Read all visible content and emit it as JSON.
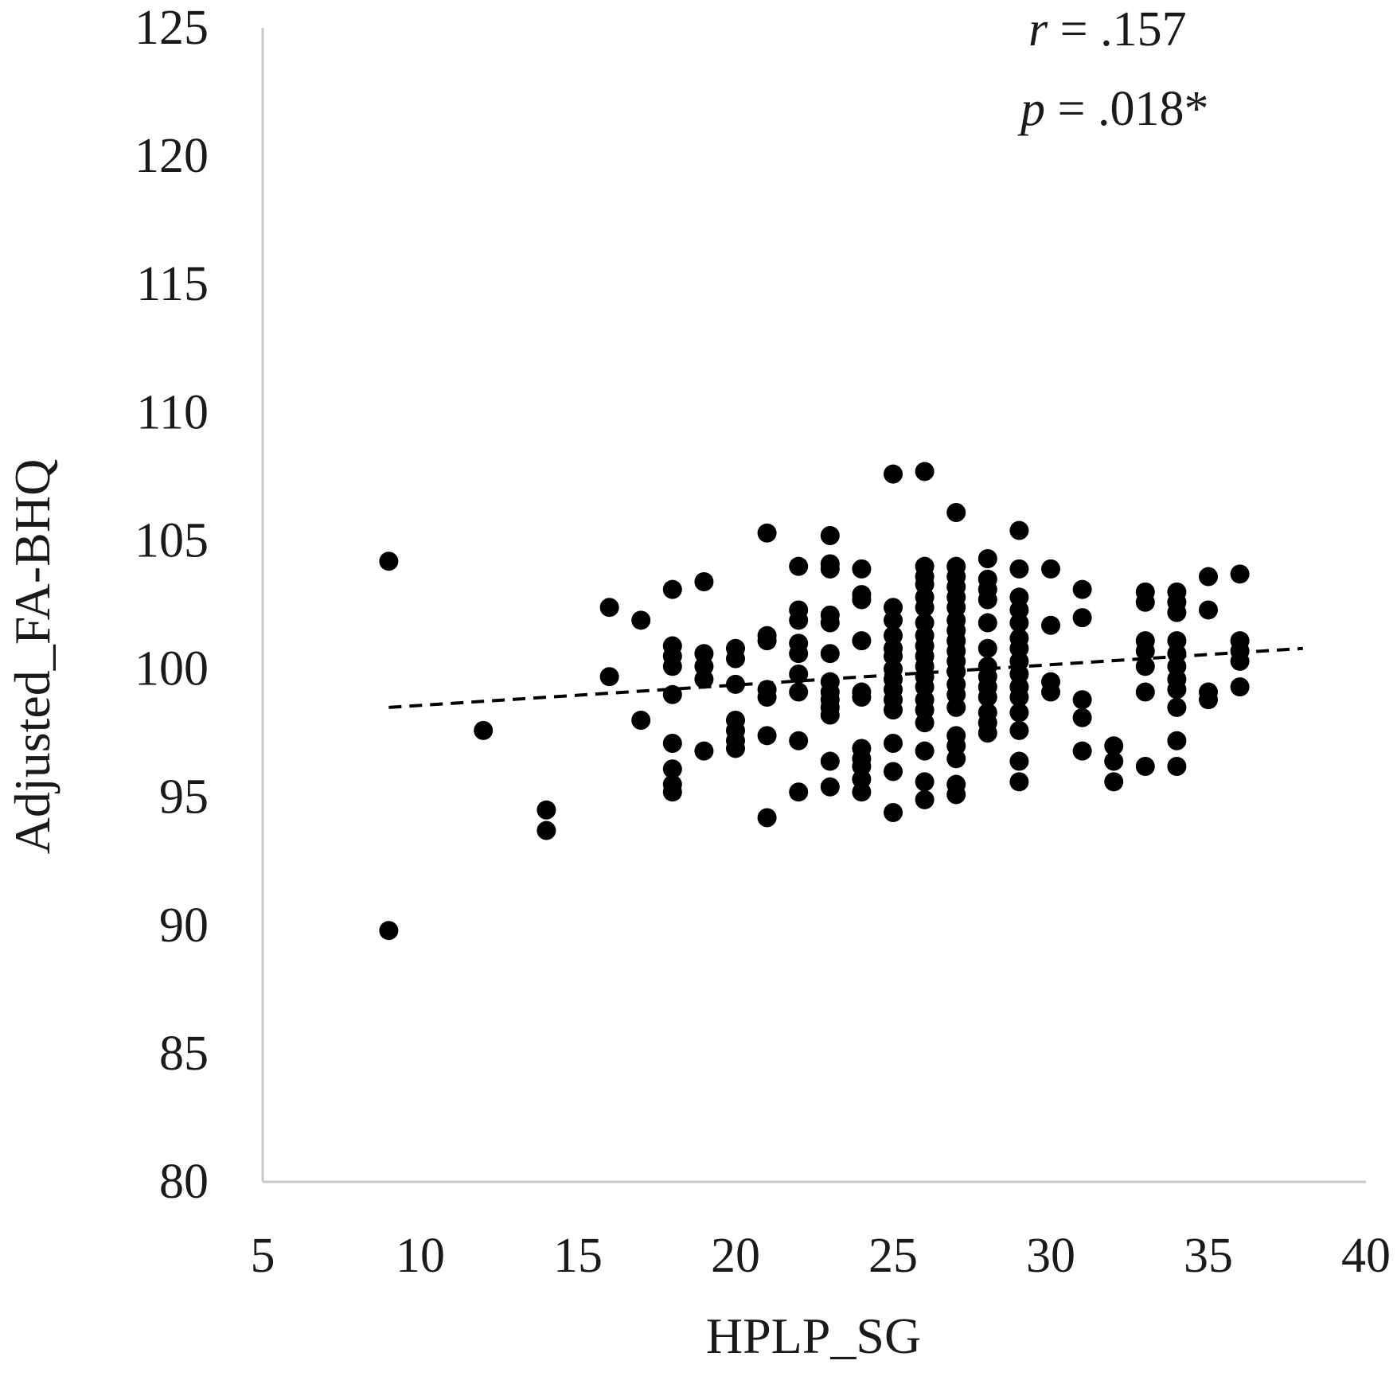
{
  "chart_data": {
    "type": "scatter",
    "xlabel": "HPLP_SG",
    "ylabel": "Adjusted_FA-BHQ",
    "xlim": [
      5,
      40
    ],
    "ylim": [
      80,
      125
    ],
    "x_ticks": [
      "5",
      "10",
      "15",
      "20",
      "25",
      "30",
      "35",
      "40"
    ],
    "y_ticks": [
      "80",
      "85",
      "90",
      "95",
      "100",
      "105",
      "110",
      "115",
      "120",
      "125"
    ],
    "grid": false,
    "legend": "none",
    "annotations": {
      "r_symbol": "r",
      "r_value": " = .157",
      "p_symbol": "p",
      "p_value": " = .018*"
    },
    "colors": {
      "points": "#000000",
      "axis": "#c8c8c8",
      "trendline": "#000000"
    },
    "trendline": {
      "style": "dashed",
      "x": [
        9,
        38
      ],
      "y": [
        98.5,
        100.8
      ]
    },
    "points": [
      [
        9,
        104.2
      ],
      [
        9,
        89.8
      ],
      [
        12,
        97.6
      ],
      [
        14,
        94.5
      ],
      [
        14,
        93.7
      ],
      [
        16,
        102.4
      ],
      [
        16,
        99.7
      ],
      [
        17,
        101.9
      ],
      [
        17,
        98.0
      ],
      [
        18,
        103.1
      ],
      [
        18,
        100.9
      ],
      [
        18,
        100.5
      ],
      [
        18,
        100.1
      ],
      [
        18,
        99.0
      ],
      [
        18,
        97.1
      ],
      [
        18,
        96.1
      ],
      [
        18,
        95.5
      ],
      [
        18,
        95.2
      ],
      [
        19,
        103.4
      ],
      [
        19,
        100.6
      ],
      [
        19,
        100.1
      ],
      [
        19,
        99.6
      ],
      [
        19,
        96.8
      ],
      [
        20,
        100.8
      ],
      [
        20,
        100.4
      ],
      [
        20,
        99.4
      ],
      [
        20,
        98.0
      ],
      [
        20,
        97.6
      ],
      [
        20,
        97.2
      ],
      [
        20,
        96.9
      ],
      [
        21,
        105.3
      ],
      [
        21,
        101.3
      ],
      [
        21,
        101.1
      ],
      [
        21,
        99.2
      ],
      [
        21,
        98.9
      ],
      [
        21,
        97.4
      ],
      [
        21,
        94.2
      ],
      [
        22,
        104.0
      ],
      [
        22,
        102.3
      ],
      [
        22,
        101.9
      ],
      [
        22,
        101.0
      ],
      [
        22,
        100.6
      ],
      [
        22,
        99.8
      ],
      [
        22,
        99.1
      ],
      [
        22,
        97.2
      ],
      [
        22,
        95.2
      ],
      [
        23,
        105.2
      ],
      [
        23,
        104.1
      ],
      [
        23,
        103.9
      ],
      [
        23,
        102.1
      ],
      [
        23,
        101.8
      ],
      [
        23,
        100.6
      ],
      [
        23,
        99.5
      ],
      [
        23,
        99.1
      ],
      [
        23,
        98.8
      ],
      [
        23,
        98.5
      ],
      [
        23,
        98.2
      ],
      [
        23,
        96.4
      ],
      [
        23,
        95.4
      ],
      [
        24,
        103.9
      ],
      [
        24,
        102.9
      ],
      [
        24,
        102.7
      ],
      [
        24,
        101.1
      ],
      [
        24,
        99.1
      ],
      [
        24,
        98.9
      ],
      [
        24,
        96.9
      ],
      [
        24,
        96.5
      ],
      [
        24,
        96.2
      ],
      [
        24,
        95.7
      ],
      [
        24,
        95.2
      ],
      [
        25,
        107.6
      ],
      [
        25,
        102.4
      ],
      [
        25,
        101.9
      ],
      [
        25,
        101.3
      ],
      [
        25,
        100.8
      ],
      [
        25,
        100.5
      ],
      [
        25,
        100.0
      ],
      [
        25,
        99.6
      ],
      [
        25,
        99.2
      ],
      [
        25,
        98.8
      ],
      [
        25,
        98.4
      ],
      [
        25,
        97.1
      ],
      [
        25,
        96.0
      ],
      [
        25,
        94.4
      ],
      [
        26,
        107.7
      ],
      [
        26,
        104.0
      ],
      [
        26,
        103.6
      ],
      [
        26,
        103.3
      ],
      [
        26,
        102.8
      ],
      [
        26,
        102.4
      ],
      [
        26,
        101.8
      ],
      [
        26,
        101.3
      ],
      [
        26,
        100.9
      ],
      [
        26,
        100.5
      ],
      [
        26,
        100.1
      ],
      [
        26,
        99.7
      ],
      [
        26,
        99.3
      ],
      [
        26,
        98.8
      ],
      [
        26,
        98.4
      ],
      [
        26,
        97.9
      ],
      [
        26,
        96.8
      ],
      [
        26,
        95.6
      ],
      [
        26,
        94.9
      ],
      [
        27,
        106.1
      ],
      [
        27,
        104.0
      ],
      [
        27,
        103.6
      ],
      [
        27,
        103.2
      ],
      [
        27,
        102.8
      ],
      [
        27,
        102.4
      ],
      [
        27,
        101.9
      ],
      [
        27,
        101.5
      ],
      [
        27,
        101.1
      ],
      [
        27,
        100.7
      ],
      [
        27,
        100.3
      ],
      [
        27,
        99.9
      ],
      [
        27,
        99.4
      ],
      [
        27,
        99.0
      ],
      [
        27,
        98.5
      ],
      [
        27,
        97.4
      ],
      [
        27,
        97.0
      ],
      [
        27,
        96.5
      ],
      [
        27,
        95.5
      ],
      [
        27,
        95.1
      ],
      [
        28,
        104.3
      ],
      [
        28,
        103.5
      ],
      [
        28,
        103.1
      ],
      [
        28,
        102.7
      ],
      [
        28,
        101.8
      ],
      [
        28,
        100.8
      ],
      [
        28,
        100.1
      ],
      [
        28,
        99.7
      ],
      [
        28,
        99.3
      ],
      [
        28,
        98.9
      ],
      [
        28,
        98.3
      ],
      [
        28,
        97.9
      ],
      [
        28,
        97.5
      ],
      [
        29,
        105.4
      ],
      [
        29,
        103.9
      ],
      [
        29,
        102.8
      ],
      [
        29,
        102.3
      ],
      [
        29,
        101.8
      ],
      [
        29,
        101.2
      ],
      [
        29,
        100.8
      ],
      [
        29,
        100.3
      ],
      [
        29,
        99.8
      ],
      [
        29,
        99.3
      ],
      [
        29,
        98.9
      ],
      [
        29,
        98.3
      ],
      [
        29,
        97.6
      ],
      [
        29,
        96.4
      ],
      [
        29,
        95.6
      ],
      [
        30,
        103.9
      ],
      [
        30,
        101.7
      ],
      [
        30,
        99.5
      ],
      [
        30,
        99.1
      ],
      [
        31,
        103.1
      ],
      [
        31,
        102.0
      ],
      [
        31,
        98.8
      ],
      [
        31,
        98.1
      ],
      [
        31,
        96.8
      ],
      [
        32,
        97.0
      ],
      [
        32,
        96.4
      ],
      [
        32,
        95.6
      ],
      [
        33,
        103.0
      ],
      [
        33,
        102.6
      ],
      [
        33,
        101.1
      ],
      [
        33,
        100.7
      ],
      [
        33,
        100.1
      ],
      [
        33,
        99.1
      ],
      [
        33,
        96.2
      ],
      [
        34,
        103.0
      ],
      [
        34,
        102.6
      ],
      [
        34,
        102.2
      ],
      [
        34,
        101.1
      ],
      [
        34,
        100.6
      ],
      [
        34,
        100.1
      ],
      [
        34,
        99.6
      ],
      [
        34,
        99.2
      ],
      [
        34,
        98.5
      ],
      [
        34,
        97.2
      ],
      [
        34,
        96.2
      ],
      [
        35,
        103.6
      ],
      [
        35,
        102.3
      ],
      [
        35,
        99.1
      ],
      [
        35,
        98.8
      ],
      [
        36,
        103.7
      ],
      [
        36,
        101.1
      ],
      [
        36,
        100.7
      ],
      [
        36,
        100.3
      ],
      [
        36,
        99.3
      ]
    ]
  }
}
